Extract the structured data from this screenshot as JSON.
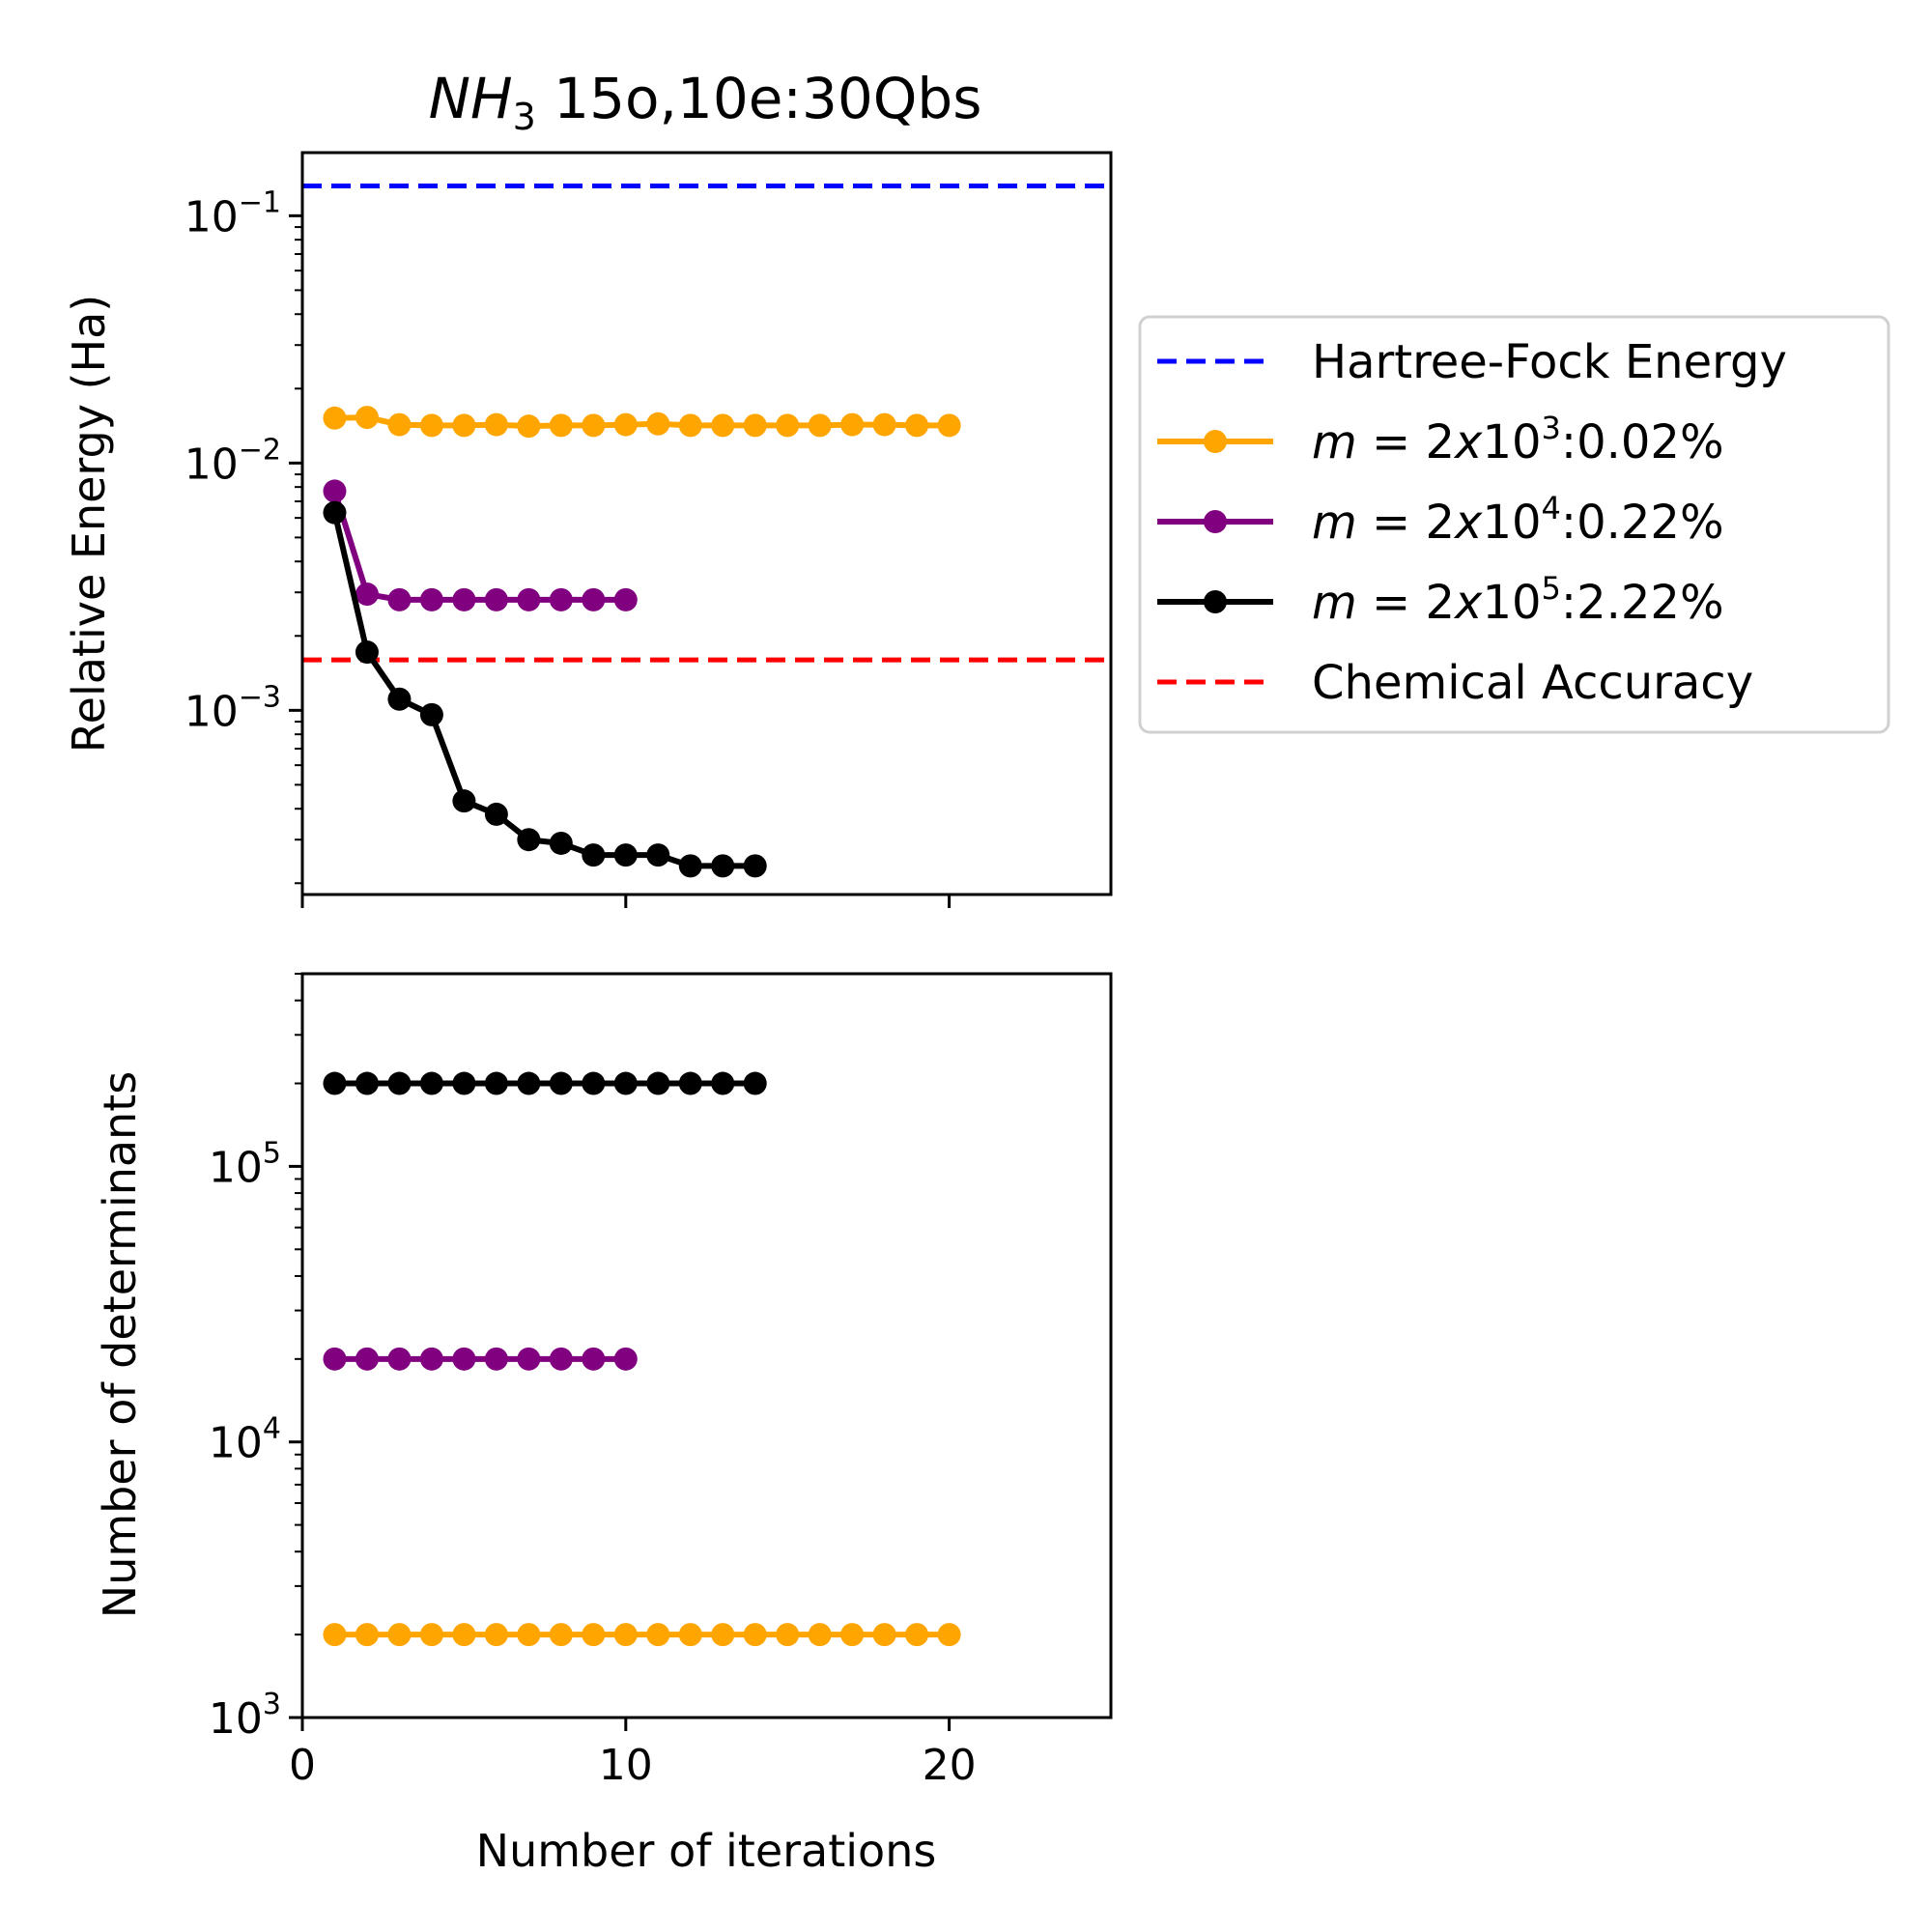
{
  "chart_data": [
    {
      "type": "line",
      "title_italic": "NH",
      "title_sub": "3",
      "title_rest": " 15o,10e:30Qbs",
      "xlabel": "",
      "ylabel": "Relative Energy (Ha)",
      "yscale": "log",
      "xlim": [
        0,
        25
      ],
      "ylim": [
        0.00018,
        0.18
      ],
      "yticks": [
        {
          "base": "10",
          "exp": "−1",
          "value": 0.1
        },
        {
          "base": "10",
          "exp": "−2",
          "value": 0.01
        },
        {
          "base": "10",
          "exp": "−3",
          "value": 0.001
        }
      ],
      "hlines": [
        {
          "name": "Hartree-Fock Energy",
          "value": 0.132,
          "color": "#0000ff",
          "style": "dashed"
        },
        {
          "name": "Chemical Accuracy",
          "value": 0.0016,
          "color": "#ff0000",
          "style": "dashed"
        }
      ],
      "series": [
        {
          "color": "#ffa500",
          "x": [
            1,
            2,
            3,
            4,
            5,
            6,
            7,
            8,
            9,
            10,
            11,
            12,
            13,
            14,
            15,
            16,
            17,
            18,
            19,
            20
          ],
          "values": [
            0.0152,
            0.0153,
            0.0143,
            0.0142,
            0.0142,
            0.0143,
            0.0141,
            0.0142,
            0.0142,
            0.0143,
            0.0144,
            0.0142,
            0.0142,
            0.0142,
            0.0142,
            0.0142,
            0.0143,
            0.0143,
            0.0142,
            0.0142
          ]
        },
        {
          "color": "#800080",
          "x": [
            1,
            2,
            3,
            4,
            5,
            6,
            7,
            8,
            9,
            10
          ],
          "values": [
            0.0077,
            0.00295,
            0.0028,
            0.0028,
            0.0028,
            0.0028,
            0.0028,
            0.0028,
            0.0028,
            0.0028
          ]
        },
        {
          "color": "#000000",
          "x": [
            1,
            2,
            3,
            4,
            5,
            6,
            7,
            8,
            9,
            10,
            11,
            12,
            13,
            14
          ],
          "values": [
            0.0063,
            0.00172,
            0.00111,
            0.00096,
            0.00043,
            0.00038,
            0.0003,
            0.00029,
            0.00026,
            0.00026,
            0.00026,
            0.000235,
            0.000235,
            0.000235
          ]
        }
      ]
    },
    {
      "type": "line",
      "xlabel": "Number of iterations",
      "ylabel": "Number of determinants",
      "yscale": "log",
      "xlim": [
        0,
        25
      ],
      "ylim": [
        1000,
        500000
      ],
      "xticks": [
        "0",
        "10",
        "20"
      ],
      "xtick_values": [
        0,
        10,
        20
      ],
      "yticks": [
        {
          "base": "10",
          "exp": "5",
          "value": 100000
        },
        {
          "base": "10",
          "exp": "4",
          "value": 10000
        },
        {
          "base": "10",
          "exp": "3",
          "value": 1000
        }
      ],
      "series": [
        {
          "color": "#ffa500",
          "x": [
            1,
            2,
            3,
            4,
            5,
            6,
            7,
            8,
            9,
            10,
            11,
            12,
            13,
            14,
            15,
            16,
            17,
            18,
            19,
            20
          ],
          "values": [
            2000,
            2000,
            2000,
            2000,
            2000,
            2000,
            2000,
            2000,
            2000,
            2000,
            2000,
            2000,
            2000,
            2000,
            2000,
            2000,
            2000,
            2000,
            2000,
            2000
          ]
        },
        {
          "color": "#800080",
          "x": [
            1,
            2,
            3,
            4,
            5,
            6,
            7,
            8,
            9,
            10
          ],
          "values": [
            20000,
            20000,
            20000,
            20000,
            20000,
            20000,
            20000,
            20000,
            20000,
            20000
          ]
        },
        {
          "color": "#000000",
          "x": [
            1,
            2,
            3,
            4,
            5,
            6,
            7,
            8,
            9,
            10,
            11,
            12,
            13,
            14
          ],
          "values": [
            200000,
            200000,
            200000,
            200000,
            200000,
            200000,
            200000,
            200000,
            200000,
            200000,
            200000,
            200000,
            200000,
            200000
          ]
        }
      ]
    }
  ],
  "legend": {
    "placement": "right of top panel",
    "entries": [
      {
        "kind": "dashed",
        "color": "#0000ff",
        "label": "Hartree-Fock Energy"
      },
      {
        "kind": "marker",
        "color": "#ffa500",
        "m_label": "m",
        "eq": " = 2",
        "x_label": "x",
        "base": "10",
        "exp": "3",
        "pct": ":0.02%"
      },
      {
        "kind": "marker",
        "color": "#800080",
        "m_label": "m",
        "eq": " = 2",
        "x_label": "x",
        "base": "10",
        "exp": "4",
        "pct": ":0.22%"
      },
      {
        "kind": "marker",
        "color": "#000000",
        "m_label": "m",
        "eq": " = 2",
        "x_label": "x",
        "base": "10",
        "exp": "5",
        "pct": ":2.22%"
      },
      {
        "kind": "dashed",
        "color": "#ff0000",
        "label": "Chemical Accuracy"
      }
    ]
  }
}
